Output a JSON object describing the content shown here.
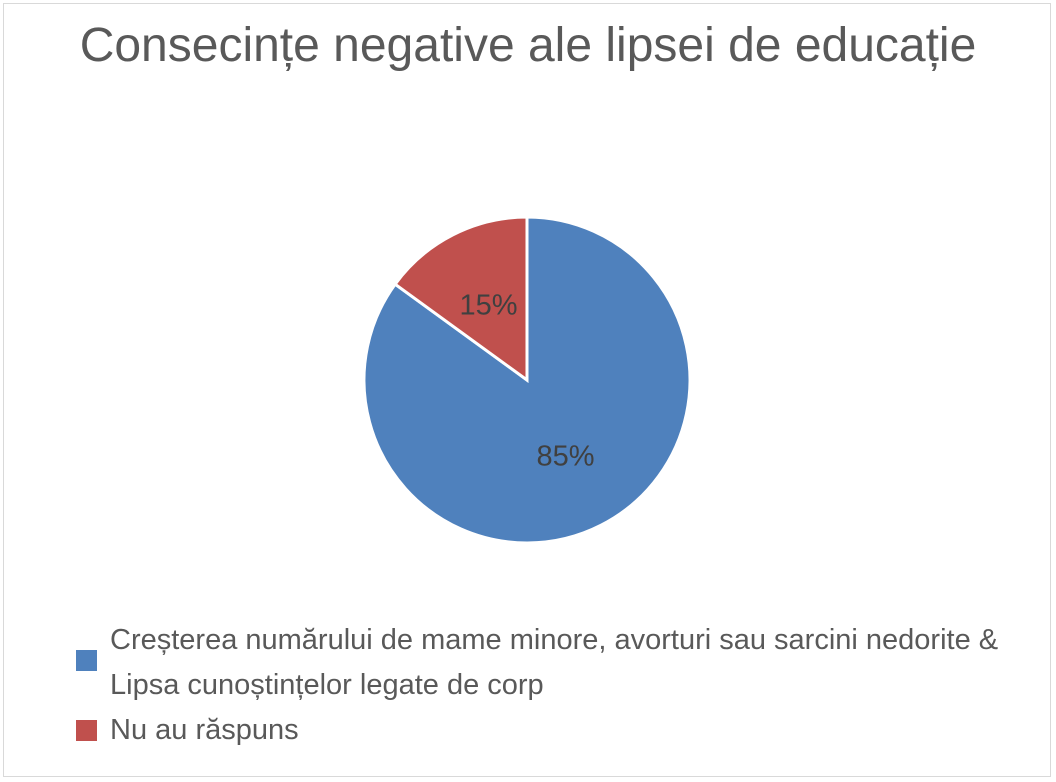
{
  "chart_data": {
    "type": "pie",
    "title": "Consecințe negative ale lipsei de educație",
    "slices": [
      {
        "label": "Creșterea numărului de mame minore, avorturi sau sarcini nedorite & Lipsa cunoștințelor legate de corp",
        "value": 85,
        "display": "85%",
        "color": "#4f81bd"
      },
      {
        "label": "Nu au răspuns",
        "value": 15,
        "display": "15%",
        "color": "#c0504d"
      }
    ],
    "legend_position": "bottom"
  }
}
